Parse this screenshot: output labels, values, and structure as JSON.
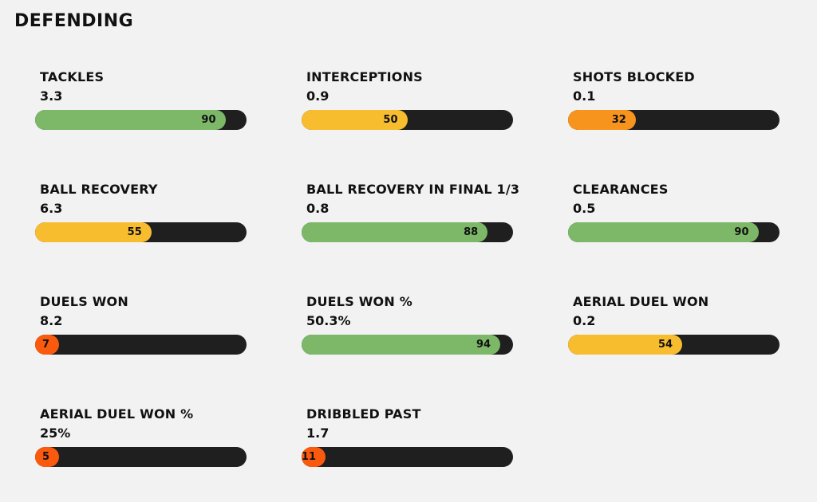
{
  "page": {
    "title": "DEFENDING",
    "background": "#f2f2f2",
    "track_color": "#1f1f1f",
    "text_color": "#111111"
  },
  "colors": {
    "green": "#7cb868",
    "yellow": "#f8bd2f",
    "orange": "#f7941e",
    "red": "#fa5a0e"
  },
  "stats": [
    {
      "label": "TACKLES",
      "value": "3.3",
      "percentile": 90,
      "color": "green"
    },
    {
      "label": "INTERCEPTIONS",
      "value": "0.9",
      "percentile": 50,
      "color": "yellow"
    },
    {
      "label": "SHOTS BLOCKED",
      "value": "0.1",
      "percentile": 32,
      "color": "orange"
    },
    {
      "label": "BALL RECOVERY",
      "value": "6.3",
      "percentile": 55,
      "color": "yellow"
    },
    {
      "label": "BALL RECOVERY IN FINAL 1/3",
      "value": "0.8",
      "percentile": 88,
      "color": "green"
    },
    {
      "label": "CLEARANCES",
      "value": "0.5",
      "percentile": 90,
      "color": "green"
    },
    {
      "label": "DUELS WON",
      "value": "8.2",
      "percentile": 7,
      "color": "red"
    },
    {
      "label": "DUELS WON %",
      "value": "50.3%",
      "percentile": 94,
      "color": "green"
    },
    {
      "label": "AERIAL DUEL WON",
      "value": "0.2",
      "percentile": 54,
      "color": "yellow"
    },
    {
      "label": "AERIAL DUEL WON %",
      "value": "25%",
      "percentile": 5,
      "color": "red"
    },
    {
      "label": "DRIBBLED PAST",
      "value": "1.7",
      "percentile": 11,
      "color": "red"
    }
  ],
  "chart_data": {
    "type": "bar",
    "orientation": "horizontal",
    "title": "DEFENDING",
    "categories": [
      "TACKLES",
      "INTERCEPTIONS",
      "SHOTS BLOCKED",
      "BALL RECOVERY",
      "BALL RECOVERY IN FINAL 1/3",
      "CLEARANCES",
      "DUELS WON",
      "DUELS WON %",
      "AERIAL DUEL WON",
      "AERIAL DUEL WON %",
      "DRIBBLED PAST"
    ],
    "series": [
      {
        "name": "stat value",
        "values": [
          3.3,
          0.9,
          0.1,
          6.3,
          0.8,
          0.5,
          8.2,
          50.3,
          0.2,
          25,
          1.7
        ]
      },
      {
        "name": "percentile",
        "values": [
          90,
          50,
          32,
          55,
          88,
          90,
          7,
          94,
          54,
          5,
          11
        ]
      }
    ],
    "xlabel": "",
    "ylabel": "",
    "xlim": [
      0,
      100
    ],
    "grid": false,
    "legend": false
  }
}
